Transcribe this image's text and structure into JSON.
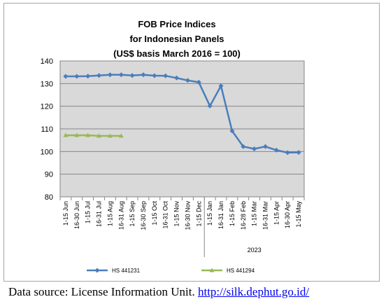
{
  "chart_data": {
    "type": "line",
    "title": [
      "FOB Price Indices",
      "for Indonesian Panels",
      "(US$ basis March 2016 = 100)"
    ],
    "xlabel": "",
    "ylabel": "",
    "ylim": [
      80,
      140
    ],
    "yticks": [
      80,
      90,
      100,
      110,
      120,
      130,
      140
    ],
    "grid": true,
    "legend_position": "bottom",
    "categories": [
      "1-15 Jun",
      "16-30 Jun",
      "1-15 Jul",
      "16-31 Jul",
      "1-15 Aug",
      "16-31 Aug",
      "1-15 Sep",
      "16-30 Sep",
      "1-15 Oct",
      "16-31 Oct",
      "1-15 Nov",
      "16-30 Nov",
      "1-15 Dec",
      "1-15 Jan",
      "16-31 Jan",
      "1-15 Feb",
      "16-28 Feb",
      "1-15 Mar",
      "16-31 Mar",
      "1-15 Apr",
      "16-30 Apr",
      "1-15 May"
    ],
    "year_label": "2023",
    "series": [
      {
        "name": "HS 441231",
        "color": "#4a7ebb",
        "marker": "diamond",
        "values": [
          133.2,
          133.2,
          133.3,
          133.6,
          133.9,
          133.9,
          133.6,
          133.9,
          133.5,
          133.4,
          132.5,
          131.4,
          130.6,
          120.1,
          129.0,
          109.1,
          102.2,
          101.2,
          102.2,
          100.6,
          99.5,
          99.6
        ]
      },
      {
        "name": "HS 441294",
        "color": "#98b954",
        "marker": "triangle",
        "values": [
          107.2,
          107.2,
          107.2,
          106.9,
          106.9,
          106.9,
          null,
          null,
          null,
          null,
          null,
          null,
          null,
          null,
          null,
          null,
          null,
          null,
          null,
          null,
          null,
          null
        ]
      }
    ]
  },
  "source": {
    "prefix": "Data source: License Information Unit. ",
    "link": "http://silk.dephut.go.id/"
  }
}
